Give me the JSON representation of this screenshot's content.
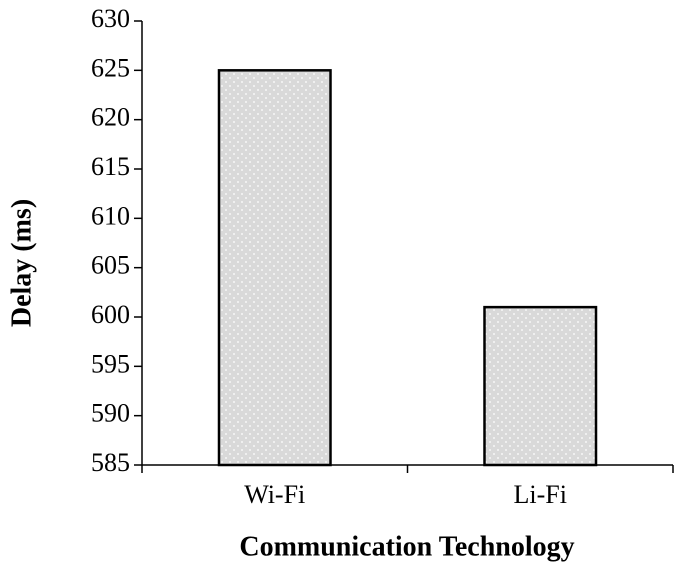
{
  "chart_data": {
    "type": "bar",
    "x_label": "Communication Technology",
    "y_label": "Delay (ms)",
    "categories": [
      "Wi-Fi",
      "Li-Fi"
    ],
    "values": [
      625,
      601
    ],
    "color": "#d9d9d9",
    "ylim": [
      585,
      630
    ],
    "yticks": [
      585,
      590,
      595,
      600,
      605,
      610,
      615,
      620,
      625,
      630
    ]
  }
}
